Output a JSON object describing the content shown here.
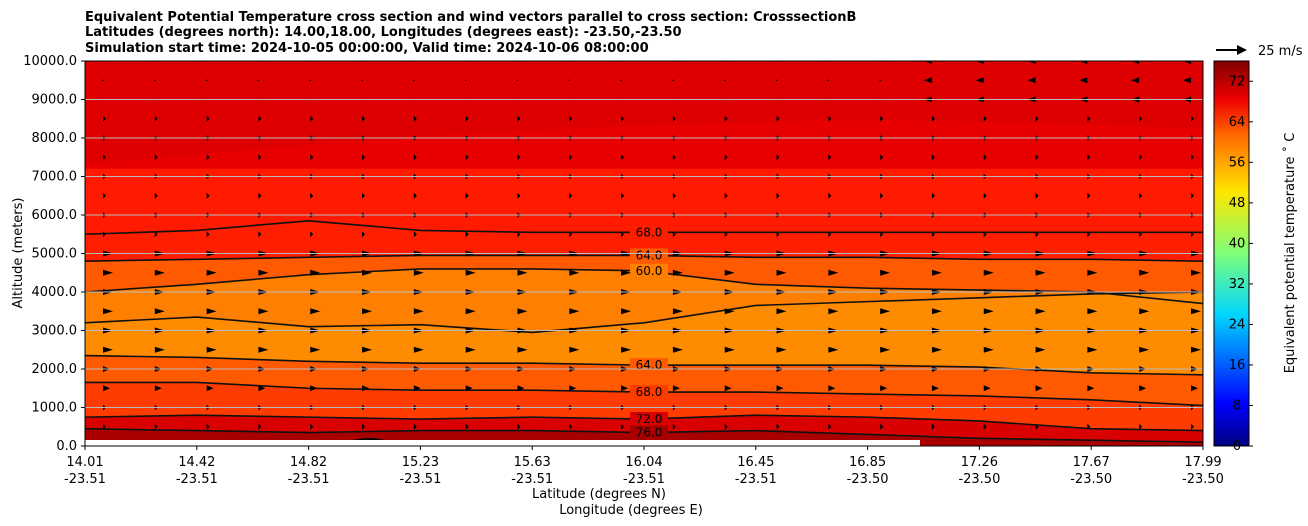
{
  "chart_data": {
    "type": "contour",
    "title_lines": [
      "Equivalent Potential Temperature cross section and wind vectors parallel to cross section: CrosssectionB",
      "Latitudes (degrees north): 14.00,18.00, Longitudes (degrees east): -23.50,-23.50",
      "Simulation start time: 2024-10-05 00:00:00, Valid time: 2024-10-06 08:00:00"
    ],
    "ylabel": "Altitude (meters)",
    "xlabel_lines": [
      "Latitude (degrees N)",
      "Longitude (degrees E)"
    ],
    "ylim": [
      0,
      10000
    ],
    "y_ticks": [
      "0.0",
      "1000.0",
      "2000.0",
      "3000.0",
      "4000.0",
      "5000.0",
      "6000.0",
      "7000.0",
      "8000.0",
      "9000.0",
      "10000.0"
    ],
    "x_ticks": [
      {
        "lat": "14.01",
        "lon": "-23.51"
      },
      {
        "lat": "14.42",
        "lon": "-23.51"
      },
      {
        "lat": "14.82",
        "lon": "-23.51"
      },
      {
        "lat": "15.23",
        "lon": "-23.51"
      },
      {
        "lat": "15.63",
        "lon": "-23.51"
      },
      {
        "lat": "16.04",
        "lon": "-23.51"
      },
      {
        "lat": "16.45",
        "lon": "-23.51"
      },
      {
        "lat": "16.85",
        "lon": "-23.50"
      },
      {
        "lat": "17.26",
        "lon": "-23.50"
      },
      {
        "lat": "17.67",
        "lon": "-23.50"
      },
      {
        "lat": "17.99",
        "lon": "-23.50"
      }
    ],
    "colorbar": {
      "label": "Equivalent potential temperature ˚ C",
      "ticks": [
        "0",
        "8",
        "16",
        "24",
        "32",
        "40",
        "48",
        "56",
        "64",
        "72"
      ],
      "range": [
        0,
        76
      ],
      "colormap": "jet"
    },
    "quiver_key": {
      "label": "25 m/s"
    },
    "contour_levels": [
      {
        "value": 68.0,
        "label": "68.0",
        "altitudes": [
          5500,
          5600,
          5850,
          5600,
          5550,
          5550,
          5550,
          5550,
          5550,
          5550,
          5550
        ]
      },
      {
        "value": 64.0,
        "label": "64.0",
        "altitudes": [
          4800,
          4850,
          4900,
          4950,
          4950,
          4950,
          4900,
          4900,
          4850,
          4850,
          4800
        ]
      },
      {
        "value": 60.0,
        "label": "60.0",
        "altitudes": [
          4000,
          4200,
          4450,
          4600,
          4600,
          4550,
          4200,
          4100,
          4050,
          4000,
          3700
        ]
      },
      {
        "value": 60.0,
        "label": "",
        "altitudes": [
          3200,
          3350,
          3100,
          3150,
          2950,
          3200,
          3650,
          3750,
          3850,
          3950,
          4000
        ]
      },
      {
        "value": 64.0,
        "label": "64.0",
        "altitudes": [
          2350,
          2300,
          2200,
          2150,
          2150,
          2100,
          2100,
          2100,
          2050,
          1900,
          1850
        ]
      },
      {
        "value": 68.0,
        "label": "68.0",
        "altitudes": [
          1650,
          1650,
          1500,
          1450,
          1450,
          1400,
          1400,
          1350,
          1300,
          1200,
          1050
        ]
      },
      {
        "value": 72.0,
        "label": "72.0",
        "altitudes": [
          750,
          800,
          750,
          700,
          750,
          700,
          800,
          750,
          650,
          450,
          400
        ]
      },
      {
        "value": 76.0,
        "label": "76.0",
        "altitudes": [
          450,
          400,
          350,
          400,
          400,
          350,
          400,
          300,
          200,
          150,
          100
        ]
      }
    ],
    "fill_bands": [
      {
        "value": 68,
        "color": "#ff3a00"
      },
      {
        "value": 72,
        "color": "#ff1e00"
      },
      {
        "value": 74,
        "color": "#e80000"
      },
      {
        "value": 62,
        "color": "#ff7a00"
      },
      {
        "value": 58,
        "color": "#ff8c00"
      },
      {
        "value": 76,
        "color": "#b00000"
      }
    ],
    "inline_labels": [
      "72.0",
      "72.0",
      "72.0",
      "68.0",
      "64.0",
      "76.0",
      "76.0",
      "68.0"
    ],
    "terrain_color": "#000000"
  }
}
